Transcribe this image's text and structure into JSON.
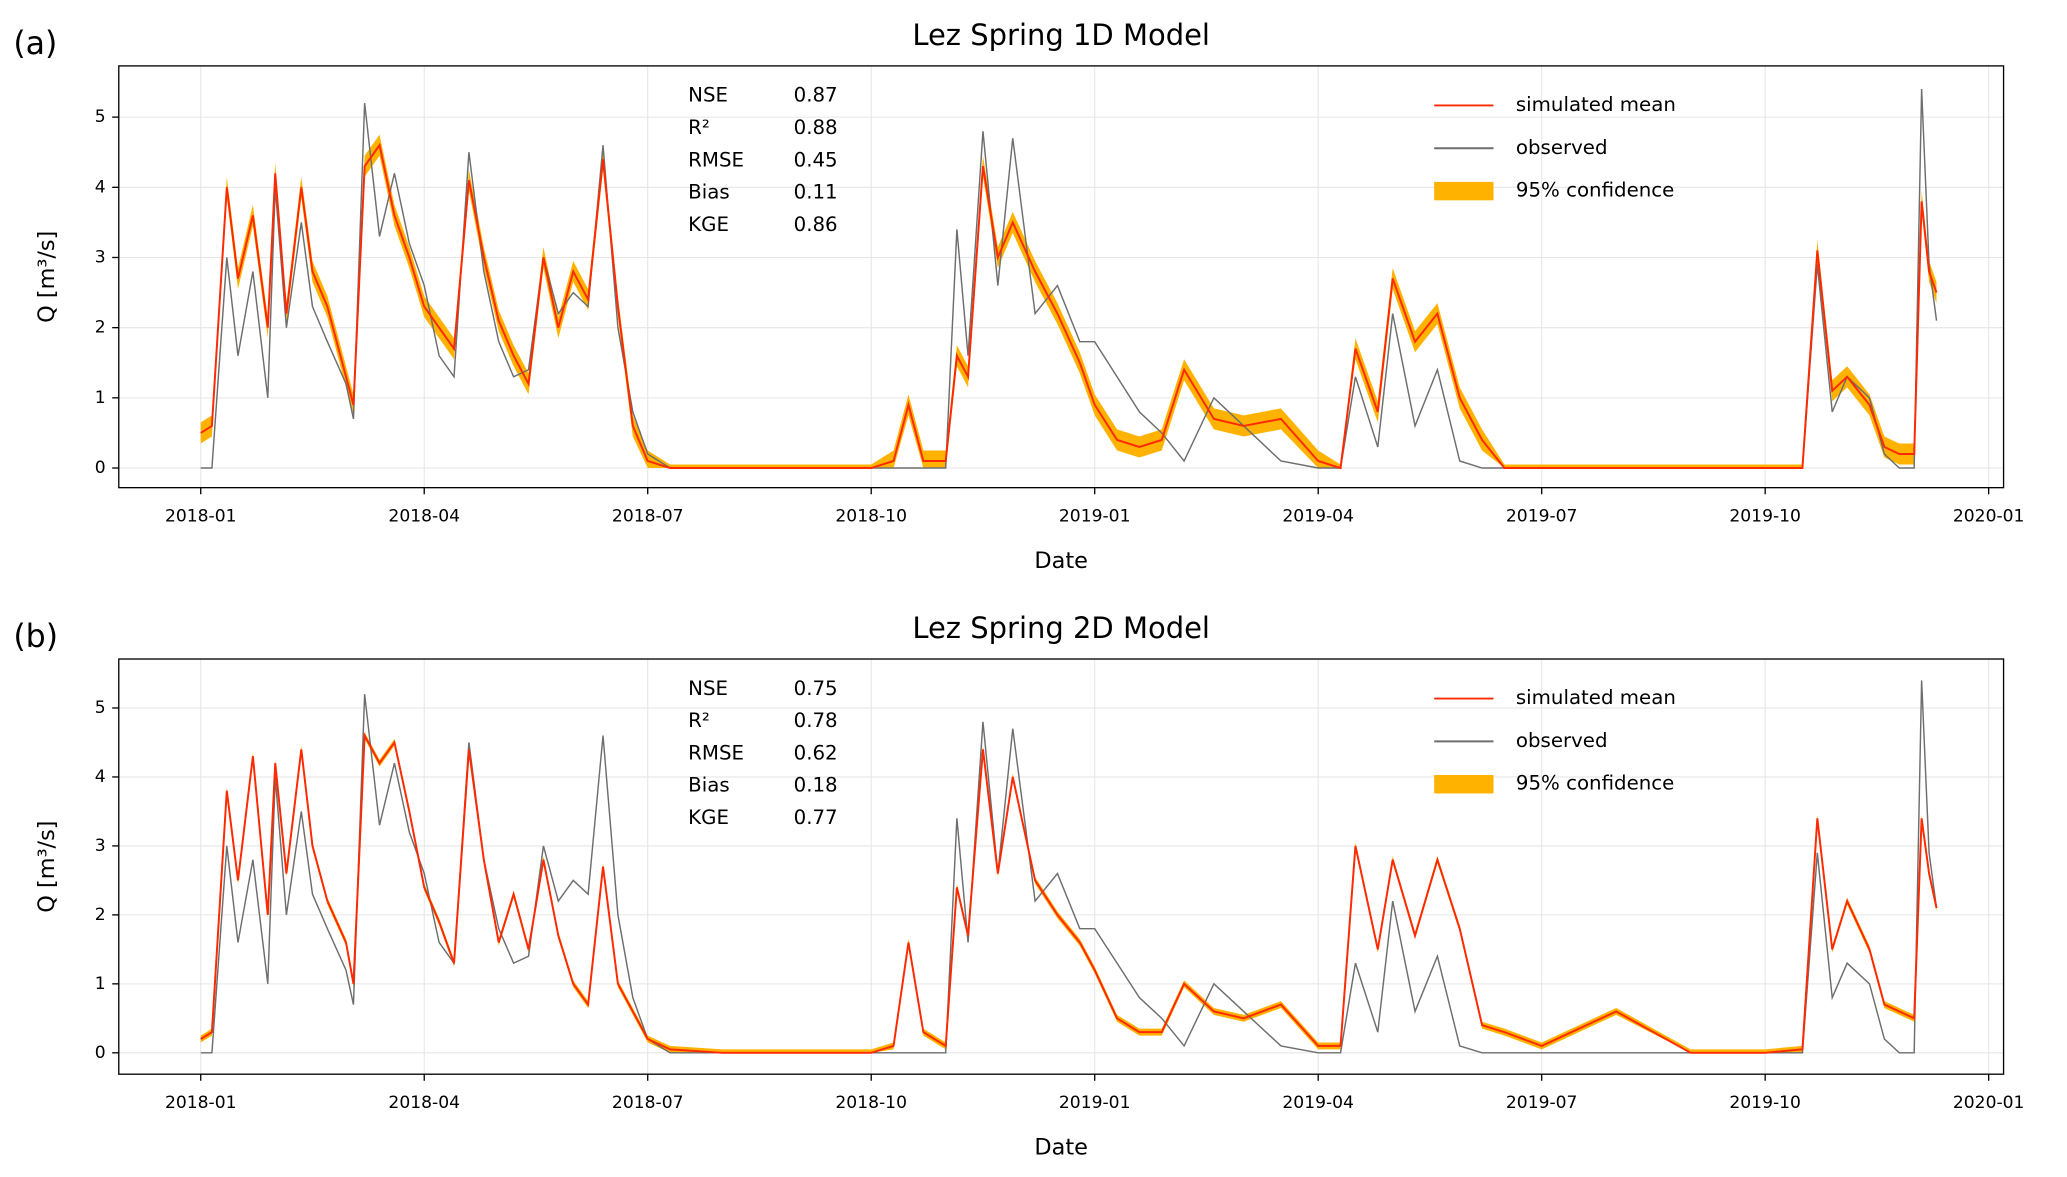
{
  "chart_data": [
    {
      "type": "line",
      "panel_label": "(a)",
      "title": "Lez Spring 1D Model",
      "xlabel": "Date",
      "ylabel": "Q [m³/s]",
      "grid": true,
      "legend": "upper right",
      "xlim": [
        -1.1,
        24.2
      ],
      "xticks": [
        {
          "value": 0,
          "label": "2018-01"
        },
        {
          "value": 3,
          "label": "2018-04"
        },
        {
          "value": 6,
          "label": "2018-07"
        },
        {
          "value": 9,
          "label": "2018-10"
        },
        {
          "value": 12,
          "label": "2019-01"
        },
        {
          "value": 15,
          "label": "2019-04"
        },
        {
          "value": 18,
          "label": "2019-07"
        },
        {
          "value": 21,
          "label": "2019-10"
        },
        {
          "value": 24,
          "label": "2020-01"
        }
      ],
      "ylim": [
        -0.28,
        5.73
      ],
      "yticks": [
        0,
        1,
        2,
        3,
        4,
        5
      ],
      "stats": [
        {
          "name": "NSE",
          "value": 0.87
        },
        {
          "name": "R²",
          "value": 0.88
        },
        {
          "name": "RMSE",
          "value": 0.45
        },
        {
          "name": "Bias",
          "value": 0.11
        },
        {
          "name": "KGE",
          "value": 0.86
        }
      ],
      "x": [
        0,
        0.15,
        0.35,
        0.5,
        0.7,
        0.9,
        1.0,
        1.15,
        1.35,
        1.5,
        1.7,
        1.95,
        2.05,
        2.2,
        2.4,
        2.6,
        2.8,
        3.0,
        3.2,
        3.4,
        3.6,
        3.8,
        4.0,
        4.2,
        4.4,
        4.6,
        4.8,
        5.0,
        5.2,
        5.4,
        5.6,
        5.8,
        6.0,
        6.3,
        7,
        8,
        9,
        9.3,
        9.5,
        9.7,
        10.0,
        10.15,
        10.3,
        10.5,
        10.7,
        10.9,
        11.2,
        11.5,
        11.8,
        12.0,
        12.3,
        12.6,
        12.9,
        13.2,
        13.6,
        14.0,
        14.5,
        15.0,
        15.3,
        15.5,
        15.8,
        16.0,
        16.3,
        16.6,
        16.9,
        17.2,
        17.5,
        18,
        19,
        20,
        21,
        21.5,
        21.7,
        21.9,
        22.1,
        22.4,
        22.6,
        22.8,
        23.0,
        23.1,
        23.2,
        23.3
      ],
      "series": [
        {
          "name": "95% confidence",
          "kind": "band",
          "color": "#ffb300",
          "lower": [
            0.35,
            0.45,
            3.85,
            2.55,
            3.45,
            1.85,
            4.05,
            2.05,
            3.85,
            2.65,
            2.15,
            1.15,
            0.75,
            4.15,
            4.45,
            3.45,
            2.85,
            2.15,
            1.85,
            1.55,
            3.95,
            2.85,
            1.95,
            1.45,
            1.05,
            2.85,
            1.85,
            2.65,
            2.25,
            4.25,
            2.15,
            0.45,
            0,
            0,
            0,
            0,
            0,
            0,
            0.75,
            0,
            0,
            1.45,
            1.15,
            4.15,
            2.85,
            3.35,
            2.65,
            2.05,
            1.35,
            0.75,
            0.25,
            0.15,
            0.25,
            1.25,
            0.55,
            0.45,
            0.55,
            0,
            0,
            1.55,
            0.65,
            2.55,
            1.65,
            2.05,
            0.85,
            0.25,
            0,
            0,
            0,
            0,
            0,
            0,
            2.95,
            0.95,
            1.15,
            0.75,
            0.15,
            0.05,
            0.05,
            3.65,
            2.65,
            2.35
          ],
          "upper": [
            0.65,
            0.75,
            4.15,
            2.85,
            3.75,
            2.15,
            4.35,
            2.35,
            4.15,
            2.95,
            2.45,
            1.45,
            1.05,
            4.45,
            4.75,
            3.75,
            3.15,
            2.45,
            2.15,
            1.85,
            4.25,
            3.15,
            2.25,
            1.75,
            1.35,
            3.15,
            2.15,
            2.95,
            2.55,
            4.55,
            2.45,
            0.75,
            0.25,
            0.05,
            0.05,
            0.05,
            0.05,
            0.25,
            1.05,
            0.25,
            0.25,
            1.75,
            1.45,
            4.45,
            3.15,
            3.65,
            2.95,
            2.35,
            1.65,
            1.05,
            0.55,
            0.45,
            0.55,
            1.55,
            0.85,
            0.75,
            0.85,
            0.25,
            0.05,
            1.85,
            0.95,
            2.85,
            1.95,
            2.35,
            1.15,
            0.55,
            0.05,
            0.05,
            0.05,
            0.05,
            0.05,
            0.05,
            3.25,
            1.25,
            1.45,
            1.05,
            0.45,
            0.35,
            0.35,
            3.95,
            2.95,
            2.65
          ]
        },
        {
          "name": "observed",
          "kind": "line",
          "color": "#6e6e6e",
          "values": [
            0,
            0,
            3.0,
            1.6,
            2.8,
            1.0,
            4.0,
            2.0,
            3.5,
            2.3,
            1.8,
            1.2,
            0.7,
            5.2,
            3.3,
            4.2,
            3.2,
            2.6,
            1.6,
            1.3,
            4.5,
            2.8,
            1.8,
            1.3,
            1.4,
            3.0,
            2.2,
            2.5,
            2.3,
            4.6,
            2.0,
            0.8,
            0.2,
            0,
            0,
            0,
            0,
            0,
            0,
            0,
            0,
            3.4,
            1.6,
            4.8,
            2.6,
            4.7,
            2.2,
            2.6,
            1.8,
            1.8,
            1.3,
            0.8,
            0.5,
            0.1,
            1.0,
            0.6,
            0.1,
            0,
            0,
            1.3,
            0.3,
            2.2,
            0.6,
            1.4,
            0.1,
            0,
            0,
            0,
            0,
            0,
            0,
            0,
            2.9,
            0.8,
            1.3,
            1.0,
            0.2,
            0,
            0,
            5.4,
            2.9,
            2.1
          ]
        },
        {
          "name": "simulated mean",
          "kind": "line",
          "color": "#ff2a00",
          "values": [
            0.5,
            0.6,
            4.0,
            2.7,
            3.6,
            2.0,
            4.2,
            2.2,
            4.0,
            2.8,
            2.3,
            1.3,
            0.9,
            4.3,
            4.6,
            3.6,
            3.0,
            2.3,
            2.0,
            1.7,
            4.1,
            3.0,
            2.1,
            1.6,
            1.2,
            3.0,
            2.0,
            2.8,
            2.4,
            4.4,
            2.3,
            0.6,
            0.1,
            0,
            0,
            0,
            0,
            0.1,
            0.9,
            0.1,
            0.1,
            1.6,
            1.3,
            4.3,
            3.0,
            3.5,
            2.8,
            2.2,
            1.5,
            0.9,
            0.4,
            0.3,
            0.4,
            1.4,
            0.7,
            0.6,
            0.7,
            0.1,
            0,
            1.7,
            0.8,
            2.7,
            1.8,
            2.2,
            1.0,
            0.4,
            0,
            0,
            0,
            0,
            0,
            0,
            3.1,
            1.1,
            1.3,
            0.9,
            0.3,
            0.2,
            0.2,
            3.8,
            2.8,
            2.5
          ]
        }
      ]
    },
    {
      "type": "line",
      "panel_label": "(b)",
      "title": "Lez Spring 2D Model",
      "xlabel": "Date",
      "ylabel": "Q [m³/s]",
      "grid": true,
      "legend": "upper right",
      "xlim": [
        -1.1,
        24.2
      ],
      "xticks": [
        {
          "value": 0,
          "label": "2018-01"
        },
        {
          "value": 3,
          "label": "2018-04"
        },
        {
          "value": 6,
          "label": "2018-07"
        },
        {
          "value": 9,
          "label": "2018-10"
        },
        {
          "value": 12,
          "label": "2019-01"
        },
        {
          "value": 15,
          "label": "2019-04"
        },
        {
          "value": 18,
          "label": "2019-07"
        },
        {
          "value": 21,
          "label": "2019-10"
        },
        {
          "value": 24,
          "label": "2020-01"
        }
      ],
      "ylim": [
        -0.31,
        5.71
      ],
      "yticks": [
        0,
        1,
        2,
        3,
        4,
        5
      ],
      "stats": [
        {
          "name": "NSE",
          "value": 0.75
        },
        {
          "name": "R²",
          "value": 0.78
        },
        {
          "name": "RMSE",
          "value": 0.62
        },
        {
          "name": "Bias",
          "value": 0.18
        },
        {
          "name": "KGE",
          "value": 0.77
        }
      ],
      "x": [
        0,
        0.15,
        0.35,
        0.5,
        0.7,
        0.9,
        1.0,
        1.15,
        1.35,
        1.5,
        1.7,
        1.95,
        2.05,
        2.2,
        2.4,
        2.6,
        2.8,
        3.0,
        3.2,
        3.4,
        3.6,
        3.8,
        4.0,
        4.2,
        4.4,
        4.6,
        4.8,
        5.0,
        5.2,
        5.4,
        5.6,
        5.8,
        6.0,
        6.3,
        7,
        8,
        9,
        9.3,
        9.5,
        9.7,
        10.0,
        10.15,
        10.3,
        10.5,
        10.7,
        10.9,
        11.2,
        11.5,
        11.8,
        12.0,
        12.3,
        12.6,
        12.9,
        13.2,
        13.6,
        14.0,
        14.5,
        15.0,
        15.3,
        15.5,
        15.8,
        16.0,
        16.3,
        16.6,
        16.9,
        17.2,
        17.5,
        18,
        19,
        20,
        21,
        21.5,
        21.7,
        21.9,
        22.1,
        22.4,
        22.6,
        22.8,
        23.0,
        23.1,
        23.2,
        23.3
      ],
      "series": [
        {
          "name": "95% confidence",
          "kind": "band",
          "color": "#ffb300",
          "lower": [
            0.15,
            0.25,
            3.75,
            2.45,
            4.25,
            1.95,
            4.15,
            2.55,
            4.35,
            2.95,
            2.15,
            1.55,
            0.95,
            4.55,
            4.15,
            4.45,
            3.45,
            2.35,
            1.85,
            1.25,
            4.35,
            2.75,
            1.55,
            2.25,
            1.45,
            2.75,
            1.65,
            0.95,
            0.65,
            2.65,
            0.95,
            0.55,
            0.15,
            0,
            0,
            0,
            0,
            0.05,
            1.55,
            0.25,
            0.05,
            2.35,
            1.65,
            4.35,
            2.55,
            3.95,
            2.45,
            1.95,
            1.55,
            1.15,
            0.45,
            0.25,
            0.25,
            0.95,
            0.55,
            0.45,
            0.65,
            0.05,
            0.05,
            2.95,
            1.45,
            2.75,
            1.65,
            2.75,
            1.75,
            0.35,
            0.25,
            0.05,
            0.55,
            0,
            0,
            0,
            3.35,
            1.45,
            2.15,
            1.45,
            0.65,
            0.55,
            0.45,
            3.35,
            2.55,
            2.05
          ],
          "upper": [
            0.25,
            0.35,
            3.85,
            2.55,
            4.35,
            2.05,
            4.25,
            2.65,
            4.45,
            3.05,
            2.25,
            1.65,
            1.05,
            4.65,
            4.25,
            4.55,
            3.55,
            2.45,
            1.95,
            1.35,
            4.45,
            2.85,
            1.65,
            2.35,
            1.55,
            2.85,
            1.75,
            1.05,
            0.75,
            2.75,
            1.05,
            0.65,
            0.25,
            0.1,
            0.05,
            0.05,
            0.05,
            0.15,
            1.65,
            0.35,
            0.15,
            2.45,
            1.75,
            4.45,
            2.65,
            4.05,
            2.55,
            2.05,
            1.65,
            1.25,
            0.55,
            0.35,
            0.35,
            1.05,
            0.65,
            0.55,
            0.75,
            0.15,
            0.15,
            3.05,
            1.55,
            2.85,
            1.75,
            2.85,
            1.85,
            0.45,
            0.35,
            0.15,
            0.65,
            0.05,
            0.05,
            0.1,
            3.45,
            1.55,
            2.25,
            1.55,
            0.75,
            0.65,
            0.55,
            3.45,
            2.65,
            2.15
          ]
        },
        {
          "name": "observed",
          "kind": "line",
          "color": "#6e6e6e",
          "values": [
            0,
            0,
            3.0,
            1.6,
            2.8,
            1.0,
            4.0,
            2.0,
            3.5,
            2.3,
            1.8,
            1.2,
            0.7,
            5.2,
            3.3,
            4.2,
            3.2,
            2.6,
            1.6,
            1.3,
            4.5,
            2.8,
            1.8,
            1.3,
            1.4,
            3.0,
            2.2,
            2.5,
            2.3,
            4.6,
            2.0,
            0.8,
            0.2,
            0,
            0,
            0,
            0,
            0,
            0,
            0,
            0,
            3.4,
            1.6,
            4.8,
            2.6,
            4.7,
            2.2,
            2.6,
            1.8,
            1.8,
            1.3,
            0.8,
            0.5,
            0.1,
            1.0,
            0.6,
            0.1,
            0,
            0,
            1.3,
            0.3,
            2.2,
            0.6,
            1.4,
            0.1,
            0,
            0,
            0,
            0,
            0,
            0,
            0,
            2.9,
            0.8,
            1.3,
            1.0,
            0.2,
            0,
            0,
            5.4,
            2.9,
            2.1
          ]
        },
        {
          "name": "simulated mean",
          "kind": "line",
          "color": "#ff2a00",
          "values": [
            0.2,
            0.3,
            3.8,
            2.5,
            4.3,
            2.0,
            4.2,
            2.6,
            4.4,
            3.0,
            2.2,
            1.6,
            1.0,
            4.6,
            4.2,
            4.5,
            3.5,
            2.4,
            1.9,
            1.3,
            4.4,
            2.8,
            1.6,
            2.3,
            1.5,
            2.8,
            1.7,
            1.0,
            0.7,
            2.7,
            1.0,
            0.6,
            0.2,
            0.05,
            0,
            0,
            0,
            0.1,
            1.6,
            0.3,
            0.1,
            2.4,
            1.7,
            4.4,
            2.6,
            4.0,
            2.5,
            2.0,
            1.6,
            1.2,
            0.5,
            0.3,
            0.3,
            1.0,
            0.6,
            0.5,
            0.7,
            0.1,
            0.1,
            3.0,
            1.5,
            2.8,
            1.7,
            2.8,
            1.8,
            0.4,
            0.3,
            0.1,
            0.6,
            0,
            0,
            0.05,
            3.4,
            1.5,
            2.2,
            1.5,
            0.7,
            0.6,
            0.5,
            3.4,
            2.6,
            2.1
          ]
        }
      ]
    }
  ]
}
